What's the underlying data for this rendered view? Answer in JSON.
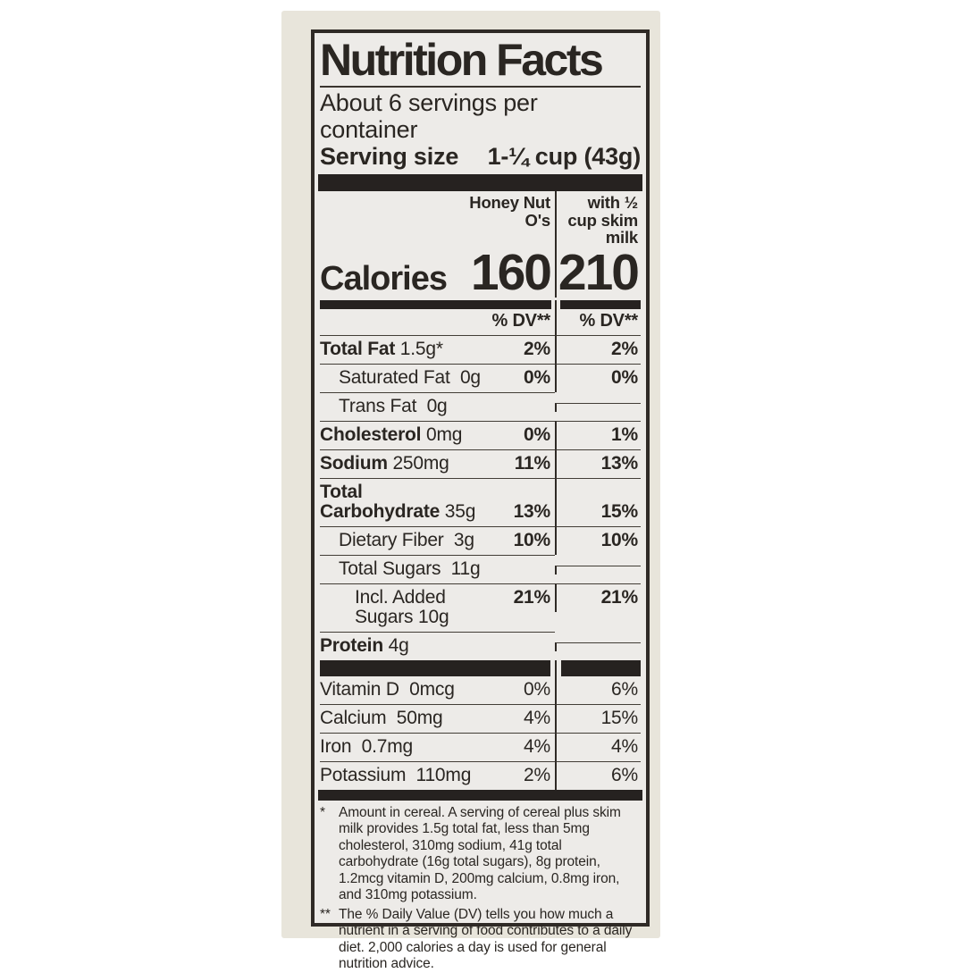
{
  "label": {
    "title": "Nutrition Facts",
    "servings_per_container": "About 6 servings per container",
    "serving_size_label": "Serving size",
    "serving_size_value": "1-¼ cup (43g)",
    "columns": [
      {
        "header": "Honey Nut\nO's"
      },
      {
        "header": "with ½\ncup skim\nmilk"
      }
    ],
    "calories": {
      "label": "Calories",
      "cereal": "160",
      "milk": "210"
    },
    "dv_header": "% DV**",
    "rows": [
      {
        "name": "Total Fat",
        "amount": "1.5g*",
        "cereal": "2%",
        "milk": "2%"
      },
      {
        "name": "Saturated Fat",
        "amount": "0g",
        "cereal": "0%",
        "milk": "0%"
      },
      {
        "name": "Trans Fat",
        "amount": "0g",
        "cereal": "",
        "milk": ""
      },
      {
        "name": "Cholesterol",
        "amount": "0mg",
        "cereal": "0%",
        "milk": "1%"
      },
      {
        "name": "Sodium",
        "amount": "250mg",
        "cereal": "11%",
        "milk": "13%"
      },
      {
        "name": "Total\nCarbohydrate",
        "amount": "35g",
        "cereal": "13%",
        "milk": "15%"
      },
      {
        "name": "Dietary Fiber",
        "amount": "3g",
        "cereal": "10%",
        "milk": "10%"
      },
      {
        "name": "Total Sugars",
        "amount": "11g",
        "cereal": "",
        "milk": ""
      },
      {
        "name": "Incl. Added Sugars",
        "amount": "10g",
        "cereal": "21%",
        "milk": "21%"
      },
      {
        "name": "Protein",
        "amount": "4g",
        "cereal": "",
        "milk": ""
      }
    ],
    "vitamins": [
      {
        "name": "Vitamin D",
        "amount": "0mcg",
        "cereal": "0%",
        "milk": "6%"
      },
      {
        "name": "Calcium",
        "amount": "50mg",
        "cereal": "4%",
        "milk": "15%"
      },
      {
        "name": "Iron",
        "amount": "0.7mg",
        "cereal": "4%",
        "milk": "4%"
      },
      {
        "name": "Potassium",
        "amount": "110mg",
        "cereal": "2%",
        "milk": "6%"
      }
    ],
    "footnotes": [
      {
        "marker": "*",
        "text": "Amount in cereal. A serving of cereal plus skim milk provides 1.5g total fat, less than 5mg cholesterol, 310mg sodium, 41g total carbohydrate (16g total sugars), 8g protein, 1.2mcg vitamin D, 200mg calcium, 0.8mg iron, and 310mg potassium."
      },
      {
        "marker": "**",
        "text": "The % Daily Value (DV) tells you how much a nutrient in a serving of food contributes to a daily diet. 2,000 calories a day is used for general nutrition advice."
      }
    ],
    "colors": {
      "label_background": "#edebe8",
      "paper_background": "#e8e5db",
      "ink": "#2a2622"
    }
  }
}
